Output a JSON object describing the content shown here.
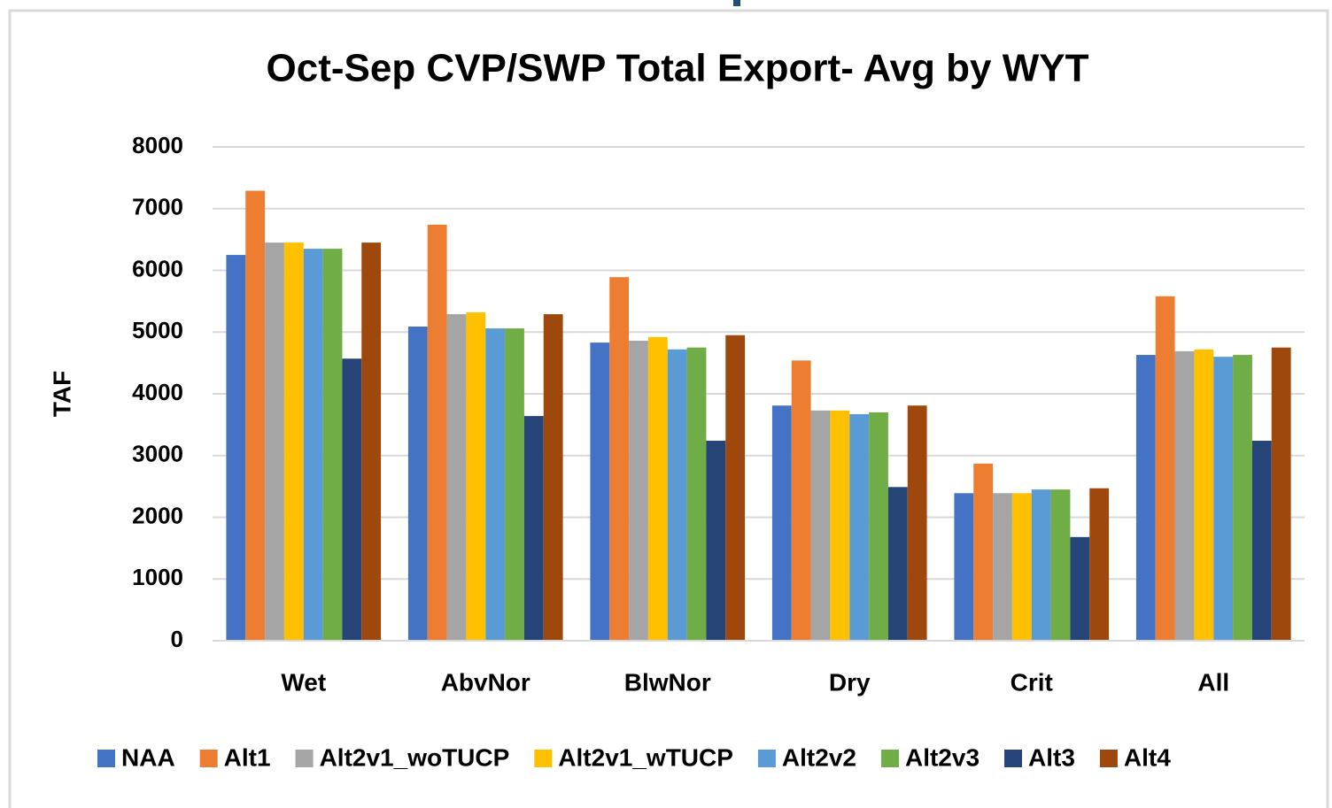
{
  "chart_data": {
    "type": "bar",
    "title": "Oct-Sep CVP/SWP Total Export- Avg by WYT",
    "y_label": "TAF",
    "categories": [
      "Wet",
      "AbvNor",
      "BlwNor",
      "Dry",
      "Crit",
      "All"
    ],
    "series": [
      {
        "name": "NAA",
        "color": "#4472c4",
        "values": [
          6250,
          5090,
          4830,
          3810,
          2390,
          4630
        ]
      },
      {
        "name": "Alt1",
        "color": "#ed7d31",
        "values": [
          7290,
          6740,
          5890,
          4540,
          2870,
          5580
        ]
      },
      {
        "name": "Alt2v1_woTUCP",
        "color": "#a5a5a5",
        "values": [
          6450,
          5290,
          4860,
          3730,
          2390,
          4690
        ]
      },
      {
        "name": "Alt2v1_wTUCP",
        "color": "#ffc000",
        "values": [
          6450,
          5320,
          4920,
          3730,
          2390,
          4720
        ]
      },
      {
        "name": "Alt2v2",
        "color": "#5b9bd5",
        "values": [
          6350,
          5060,
          4720,
          3670,
          2450,
          4600
        ]
      },
      {
        "name": "Alt2v3",
        "color": "#70ad47",
        "values": [
          6350,
          5060,
          4750,
          3700,
          2450,
          4630
        ]
      },
      {
        "name": "Alt3",
        "color": "#264478",
        "values": [
          4570,
          3640,
          3240,
          2490,
          1680,
          3240
        ]
      },
      {
        "name": "Alt4",
        "color": "#9e480e",
        "values": [
          6450,
          5290,
          4950,
          3810,
          2470,
          4750
        ]
      }
    ],
    "ylim": [
      0,
      8000
    ],
    "yticks": [
      0,
      1000,
      2000,
      3000,
      4000,
      5000,
      6000,
      7000,
      8000
    ],
    "grid": true,
    "legend": "bottom"
  }
}
